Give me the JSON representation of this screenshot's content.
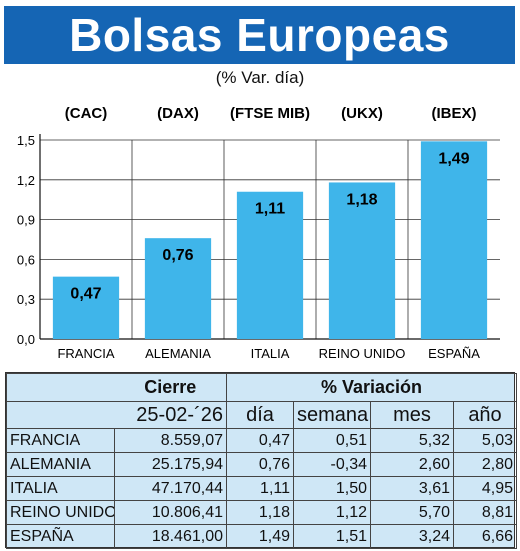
{
  "header": {
    "title": "Bolsas Europeas",
    "subtitle": "(% Var. día)"
  },
  "chart_data": {
    "type": "bar",
    "index_labels": [
      "(CAC)",
      "(DAX)",
      "(FTSE MIB)",
      "(UKX)",
      "(IBEX)"
    ],
    "categories": [
      "FRANCIA",
      "ALEMANIA",
      "ITALIA",
      "REINO UNIDO",
      "ESPAÑA"
    ],
    "values": [
      0.47,
      0.76,
      1.11,
      1.18,
      1.49
    ],
    "value_labels": [
      "0,47",
      "0,76",
      "1,11",
      "1,18",
      "1,49"
    ],
    "ylim": [
      0,
      1.5
    ],
    "yticks": [
      "0,0",
      "0,3",
      "0,6",
      "0,9",
      "1,2",
      "1,5"
    ],
    "grid": true,
    "bar_color": "#3fb5ea"
  },
  "table": {
    "group_headers": {
      "close": "Cierre",
      "variation": "% Variación"
    },
    "date": "25-02-´26",
    "columns": [
      "día",
      "semana",
      "mes",
      "año"
    ],
    "rows": [
      {
        "country": "FRANCIA",
        "close": "8.559,07",
        "day": "0,47",
        "week": "0,51",
        "month": "5,32",
        "year": "5,03"
      },
      {
        "country": "ALEMANIA",
        "close": "25.175,94",
        "day": "0,76",
        "week": "-0,34",
        "month": "2,60",
        "year": "2,80"
      },
      {
        "country": "ITALIA",
        "close": "47.170,44",
        "day": "1,11",
        "week": "1,50",
        "month": "3,61",
        "year": "4,95"
      },
      {
        "country": "REINO UNIDO",
        "close": "10.806,41",
        "day": "1,18",
        "week": "1,12",
        "month": "5,70",
        "year": "8,81"
      },
      {
        "country": "ESPAÑA",
        "close": "18.461,00",
        "day": "1,49",
        "week": "1,51",
        "month": "3,24",
        "year": "6,66"
      }
    ]
  }
}
